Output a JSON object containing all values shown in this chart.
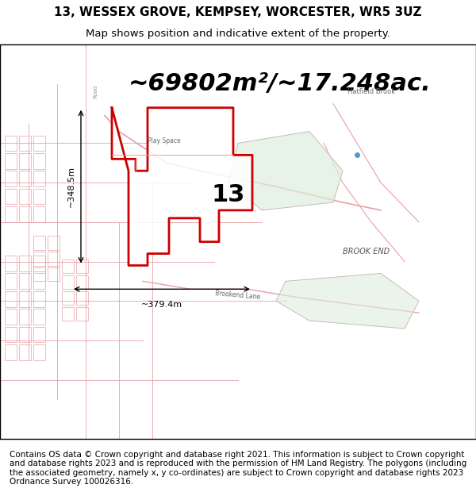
{
  "title_line1": "13, WESSEX GROVE, KEMPSEY, WORCESTER, WR5 3UZ",
  "title_line2": "Map shows position and indicative extent of the property.",
  "area_text": "~69802m²/~17.248ac.",
  "width_label": "~379.4m",
  "height_label": "~348.5m",
  "plot_number": "13",
  "place_label": "BROOK END",
  "footer_text": "Contains OS data © Crown copyright and database right 2021. This information is subject to Crown copyright and database rights 2023 and is reproduced with the permission of HM Land Registry. The polygons (including the associated geometry, namely x, y co-ordinates) are subject to Crown copyright and database rights 2023 Ordnance Survey 100026316.",
  "bg_color": "#f5f0eb",
  "map_bg": "#f5f0eb",
  "road_color": "#e8b4b8",
  "plot_fill": "#ffffff",
  "plot_edge": "#cc0000",
  "green_fill": "#d4edda",
  "green_edge": "#c8a0a0",
  "title_fontsize": 11,
  "subtitle_fontsize": 9.5,
  "area_fontsize": 22,
  "footer_fontsize": 7.5
}
